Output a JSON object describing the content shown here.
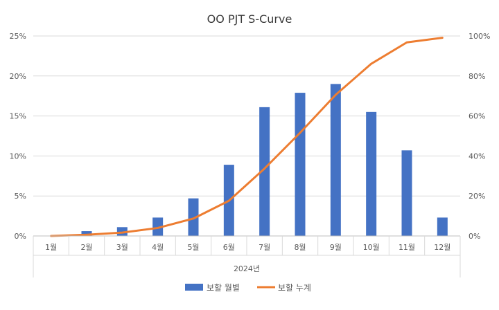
{
  "chart_data": {
    "type": "bar+line",
    "title": "OO PJT S-Curve",
    "categories": [
      "1월",
      "2월",
      "3월",
      "4월",
      "5월",
      "6월",
      "7월",
      "8월",
      "9월",
      "10월",
      "11월",
      "12월"
    ],
    "xlabel": "2024년",
    "series": [
      {
        "name": "보할 월별",
        "type": "bar",
        "axis": "left",
        "color": "#4472C4",
        "values": [
          0.0,
          0.6,
          1.1,
          2.3,
          4.7,
          8.9,
          16.1,
          17.9,
          19.0,
          15.5,
          10.7,
          2.3
        ]
      },
      {
        "name": "보할 누계",
        "type": "line",
        "axis": "right",
        "color": "#ED7D31",
        "values": [
          0.0,
          0.6,
          1.7,
          4.0,
          8.7,
          17.6,
          33.7,
          51.6,
          70.6,
          86.1,
          96.8,
          99.1
        ]
      }
    ],
    "y_left": {
      "min": 0,
      "max": 25,
      "ticks": [
        "0%",
        "5%",
        "10%",
        "15%",
        "20%",
        "25%"
      ]
    },
    "y_right": {
      "min": 0,
      "max": 100,
      "ticks": [
        "0%",
        "20%",
        "40%",
        "60%",
        "80%",
        "100%"
      ]
    },
    "grid": true,
    "legend_position": "bottom"
  }
}
